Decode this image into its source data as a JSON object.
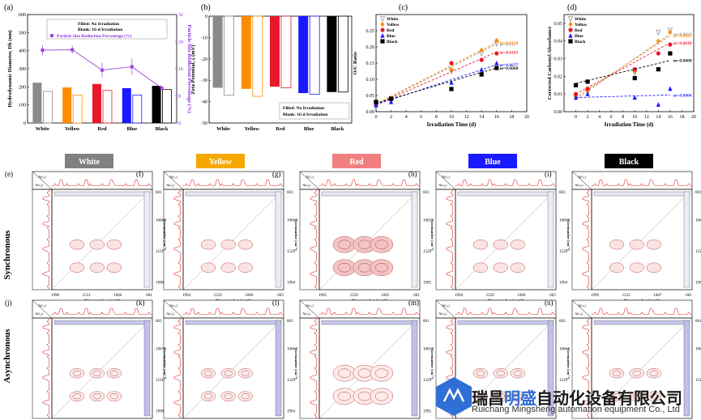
{
  "chart_data": [
    {
      "panel": "(a)",
      "type": "bar",
      "categories": [
        "White",
        "Yellow",
        "Red",
        "Blue",
        "Black"
      ],
      "colors": [
        "#8a8a8a",
        "#ff8c00",
        "#e8192c",
        "#1919ff",
        "#000000"
      ],
      "ylabel": "Hydrodynamic Diameter, Dh (nm)",
      "y2label": "Particle Size Reduction Percentage (%)",
      "ylim": [
        0,
        600
      ],
      "yticks": [
        0,
        100,
        200,
        300,
        400,
        500,
        600
      ],
      "y2lim": [
        0,
        32
      ],
      "y2ticks": [
        0,
        8,
        16,
        24,
        32
      ],
      "legend": [
        "Filled: No Irradiation",
        "Blank: 16-d Irradiation",
        "Particle Size Reduction Percentage (%)"
      ],
      "series": [
        {
          "name": "Filled: No Irradiation",
          "values": [
            223,
            197,
            216,
            193,
            206
          ],
          "errors": [
            3,
            3,
            3,
            3,
            3
          ]
        },
        {
          "name": "Blank: 16-d Irradiation",
          "values": [
            175,
            155,
            180,
            155,
            185
          ],
          "errors": [
            3,
            3,
            3,
            3,
            3
          ]
        },
        {
          "name": "Particle Size Reduction Percentage (%)",
          "values": [
            21.5,
            21.6,
            15.6,
            16.6,
            10.3
          ],
          "errors": [
            1.5,
            1.2,
            2.2,
            2.4,
            0.4
          ]
        }
      ]
    },
    {
      "panel": "(b)",
      "type": "bar",
      "categories": [
        "White",
        "Yellow",
        "Red",
        "Blue",
        "Black"
      ],
      "colors": [
        "#8a8a8a",
        "#ff8c00",
        "#e8192c",
        "#1919ff",
        "#000000"
      ],
      "ylabel": "Zeta Potential, ζ (mV)",
      "ylim": [
        -50,
        0
      ],
      "yticks": [
        0,
        -10,
        -20,
        -30,
        -40,
        -50
      ],
      "legend": [
        "Filled: No Irradiation",
        "Blank: 16-d Irradiation"
      ],
      "series": [
        {
          "name": "Filled: No Irradiation",
          "values": [
            -33.5,
            -34,
            -33,
            -36,
            -35.5
          ],
          "errors": [
            0.5,
            0.5,
            0.5,
            0.5,
            0.5
          ]
        },
        {
          "name": "Blank: 16-d Irradiation",
          "values": [
            -37,
            -37.5,
            -33.5,
            -36.5,
            -35.5
          ],
          "errors": [
            1,
            1,
            0.5,
            0.5,
            0.5
          ]
        }
      ]
    },
    {
      "panel": "(c)",
      "type": "scatter",
      "xlabel": "Irradiation Time (d)",
      "ylabel": "O/C Ratio",
      "xlim": [
        0,
        20
      ],
      "xticks": [
        0,
        2,
        4,
        6,
        8,
        10,
        12,
        14,
        16,
        18,
        20
      ],
      "ylim": [
        0,
        0.3
      ],
      "yticks": [
        0.0,
        0.05,
        0.1,
        0.15,
        0.2,
        0.25
      ],
      "legend": [
        "White",
        "Yellow",
        "Red",
        "Blue",
        "Black"
      ],
      "series": [
        {
          "name": "White",
          "color": "#999999",
          "marker": "tri-down",
          "x": [
            0,
            2,
            10,
            14,
            16
          ],
          "y": [
            0.024,
            0.04,
            0.125,
            0.18,
            0.21
          ],
          "slope": "m=0.0117",
          "fit": [
            [
              0,
              0.022
            ],
            [
              16,
              0.209
            ]
          ]
        },
        {
          "name": "Yellow",
          "color": "#ff8c00",
          "marker": "diamond",
          "x": [
            0,
            2,
            10,
            14,
            16
          ],
          "y": [
            0.025,
            0.035,
            0.13,
            0.19,
            0.22
          ],
          "slope": "m=0.0119",
          "fit": [
            [
              0,
              0.024
            ],
            [
              16,
              0.214
            ]
          ]
        },
        {
          "name": "Red",
          "color": "#e8192c",
          "marker": "circle",
          "x": [
            0,
            2,
            10,
            14,
            16
          ],
          "y": [
            0.022,
            0.04,
            0.15,
            0.16,
            0.18
          ],
          "slope": "m=0.0101",
          "fit": [
            [
              0,
              0.022
            ],
            [
              16,
              0.184
            ]
          ]
        },
        {
          "name": "Blue",
          "color": "#1919ff",
          "marker": "tri-up",
          "x": [
            0,
            2,
            10,
            14,
            16
          ],
          "y": [
            0.02,
            0.03,
            0.09,
            0.13,
            0.15
          ],
          "slope": "m=0.0077",
          "fit": [
            [
              0,
              0.022
            ],
            [
              16,
              0.145
            ]
          ]
        },
        {
          "name": "Black",
          "color": "#000000",
          "marker": "square",
          "x": [
            0,
            2,
            10,
            14,
            16
          ],
          "y": [
            0.03,
            0.04,
            0.07,
            0.115,
            0.135
          ],
          "slope": "m=0.0068",
          "fit": [
            [
              0,
              0.026
            ],
            [
              16,
              0.135
            ]
          ]
        }
      ]
    },
    {
      "panel": "(d)",
      "type": "scatter",
      "xlabel": "Irradiation Time (d)",
      "ylabel": "Corrected Carbonyl Absorbance",
      "xlim": [
        -2,
        20
      ],
      "xticks": [
        0,
        2,
        4,
        6,
        8,
        10,
        12,
        14,
        16,
        18,
        20
      ],
      "ylim": [
        0,
        0.055
      ],
      "yticks": [
        0.0,
        0.01,
        0.02,
        0.03,
        0.04,
        0.05
      ],
      "legend": [
        "White",
        "Yellow",
        "Red",
        "Blue",
        "Black"
      ],
      "series": [
        {
          "name": "White",
          "color": "#999999",
          "marker": "tri-down",
          "x": [
            0,
            2,
            10,
            14,
            16
          ],
          "y": [
            0.008,
            0.011,
            0.022,
            0.045,
            0.046
          ],
          "slope": "m=0.0022",
          "fit": [
            [
              0,
              0.007
            ],
            [
              16,
              0.044
            ]
          ]
        },
        {
          "name": "Yellow",
          "color": "#ff8c00",
          "marker": "diamond",
          "x": [
            0,
            2,
            10,
            14,
            16
          ],
          "y": [
            0.009,
            0.012,
            0.023,
            0.04,
            0.045
          ],
          "slope": "m=0.0021",
          "fit": [
            [
              0,
              0.008
            ],
            [
              16,
              0.043
            ]
          ]
        },
        {
          "name": "Red",
          "color": "#e8192c",
          "marker": "circle",
          "x": [
            0,
            2,
            10,
            14,
            16
          ],
          "y": [
            0.01,
            0.013,
            0.024,
            0.033,
            0.038
          ],
          "slope": "m=0.0018",
          "fit": [
            [
              0,
              0.01
            ],
            [
              16,
              0.039
            ]
          ]
        },
        {
          "name": "Blue",
          "color": "#1919ff",
          "marker": "tri-up",
          "x": [
            0,
            2,
            10,
            14,
            16
          ],
          "y": [
            0.008,
            0.01,
            0.008,
            0.004,
            0.013
          ],
          "slope": "m=0.0004",
          "fit": [
            [
              0,
              0.008
            ],
            [
              16,
              0.0095
            ]
          ]
        },
        {
          "name": "Black",
          "color": "#000000",
          "marker": "square",
          "x": [
            0,
            2,
            10,
            14,
            16
          ],
          "y": [
            0.015,
            0.017,
            0.019,
            0.024,
            0.033
          ],
          "slope": "m=0.0008",
          "fit": [
            [
              0,
              0.016
            ],
            [
              16,
              0.029
            ]
          ]
        }
      ]
    }
  ],
  "panel_labels": [
    "(a)",
    "(b)",
    "(c)",
    "(d)",
    "(e)",
    "(f)",
    "(g)",
    "(h)",
    "(i)",
    "(j)",
    "(k)",
    "(l)",
    "(m)",
    "(n)"
  ],
  "row_labels": {
    "sync": "Synchronous",
    "async": "Asynchronous"
  },
  "columns": [
    {
      "name": "White",
      "color": "#808080",
      "text_color": "#ffffff",
      "ticks": [
        "1998",
        "1531",
        "1066",
        "601"
      ],
      "yticks": [
        "1066",
        "1531",
        "1998"
      ],
      "top_tick": "601"
    },
    {
      "name": "Yellow",
      "color": "#f5a800",
      "text_color": "#ffffff",
      "ticks": [
        "1994",
        "1529",
        "1066",
        "603"
      ],
      "yticks": [
        "1066",
        "1529",
        "1994"
      ],
      "top_tick": "603"
    },
    {
      "name": "Red",
      "color": "#f08080",
      "text_color": "#ffffff",
      "ticks": [
        "1995",
        "1529",
        "1065",
        "601"
      ],
      "yticks": [
        "1065",
        "1529",
        "1995"
      ],
      "top_tick": "601"
    },
    {
      "name": "Blue",
      "color": "#1a1aff",
      "text_color": "#ffffff",
      "ticks": [
        "1994",
        "1529",
        "1066",
        "603"
      ],
      "yticks": [
        "1066",
        "1529",
        "1994"
      ],
      "top_tick": "603"
    },
    {
      "name": "Black",
      "color": "#000000",
      "text_color": "#ffffff",
      "ticks": [
        "1999",
        "1533",
        "1067",
        "601"
      ],
      "yticks": [
        "1067",
        "1533",
        "1999"
      ],
      "top_tick": "601"
    }
  ],
  "async_columns": [
    {
      "ticks": [
        "1998",
        "1531",
        "1067",
        "603"
      ],
      "yticks": [
        "1067",
        "1531",
        "1998"
      ],
      "top_tick": "603"
    },
    {
      "ticks": [
        "1994",
        "1529",
        "1066",
        "603"
      ],
      "yticks": [
        "1066",
        "1529",
        "1994"
      ],
      "top_tick": "603"
    },
    {
      "ticks": [
        "1995",
        "1529",
        "1065",
        "601"
      ],
      "yticks": [
        "1065",
        "1529",
        "1995"
      ],
      "top_tick": "601"
    },
    {
      "ticks": [
        "1994",
        "1529",
        "1066",
        "603"
      ],
      "yticks": [
        "1066",
        "1529"
      ],
      "top_tick": "603"
    },
    {
      "ticks": [
        "1999",
        "1533",
        "1067",
        "601"
      ],
      "yticks": [
        "1065",
        "1529"
      ],
      "top_tick": "601"
    }
  ],
  "map_axis": {
    "xlabel": "Wavenumber (cm⁻¹)",
    "ylabel": "Wavenumber (cm⁻¹)",
    "a1": "A(ν₁)",
    "a2": "A(ν₂)"
  },
  "watermark": {
    "cn_a": "瑞昌",
    "cn_b": "明盛",
    "cn_c": "自动化设备有限公司",
    "en": "Ruichang Mingsheng automation equipment Co., Ltd"
  }
}
